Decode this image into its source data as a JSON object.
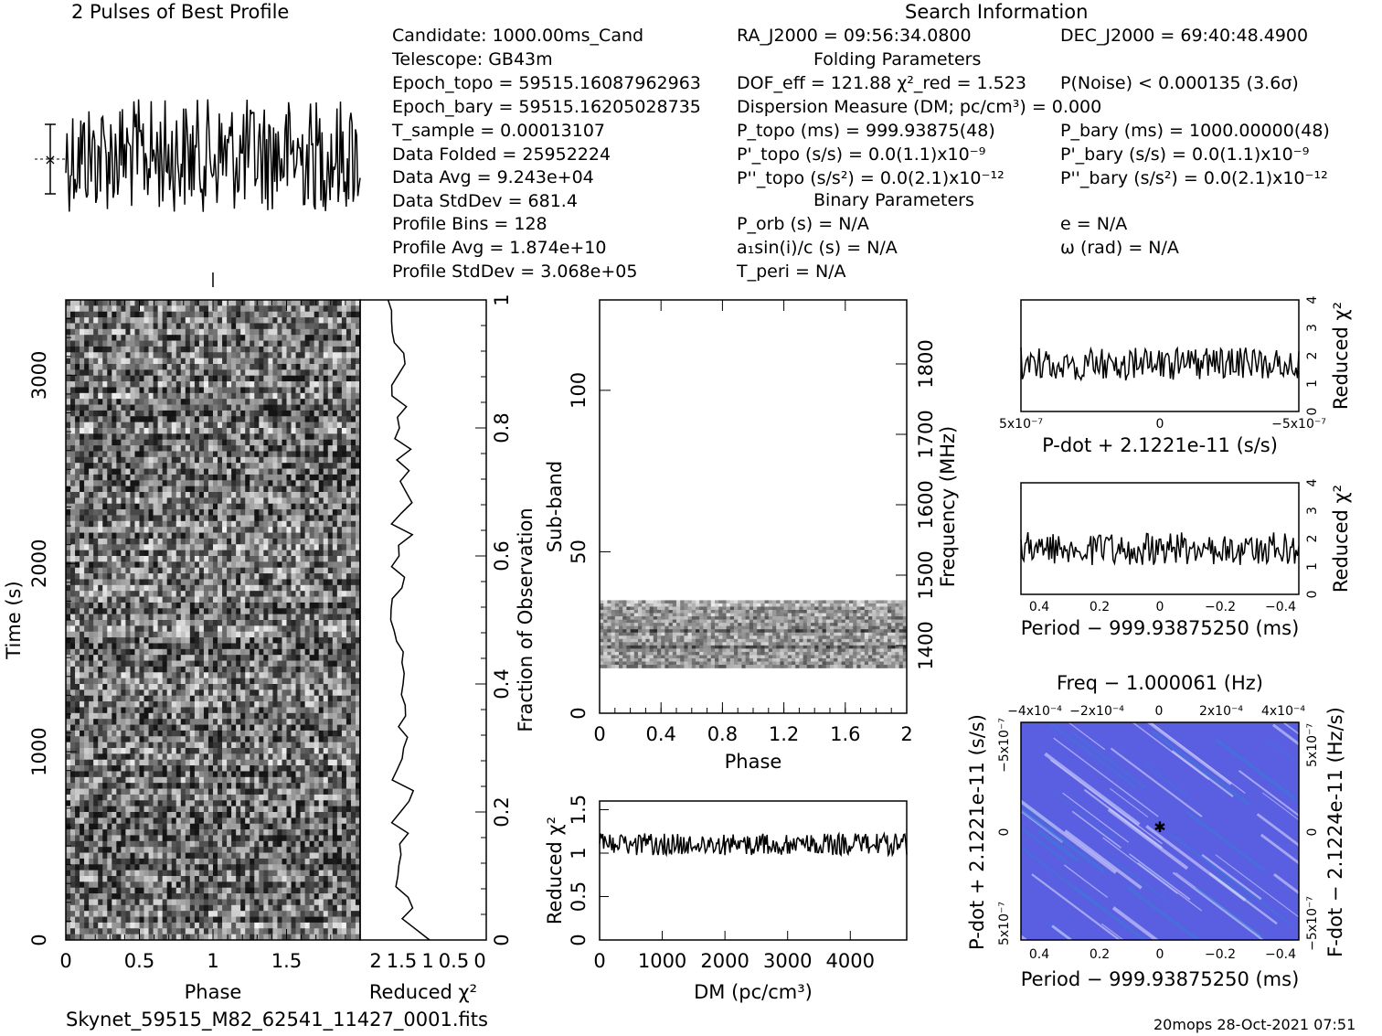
{
  "header": {
    "profile_title": "2 Pulses of Best Profile",
    "search_title": "Search Information",
    "folding_title": "Folding Parameters",
    "binary_title": "Binary Parameters"
  },
  "info_left": [
    "Candidate:  1000.00ms_Cand",
    "Telescope:  GB43m",
    "Epoch_topo = 59515.16087962963",
    "Epoch_bary = 59515.16205028735",
    "T_sample  =  0.00013107",
    "Data Folded  =  25952224",
    "Data Avg  =  9.243e+04",
    "Data StdDev  =  681.4",
    "Profile Bins  =  128",
    "Profile Avg  =  1.874e+10",
    "Profile StdDev  =  3.068e+05"
  ],
  "info_mid": [
    "RA_J2000 = 09:56:34.0800",
    "DOF_eff = 121.88  χ²_red = 1.523",
    "Dispersion Measure (DM; pc/cm³) = 0.000",
    "P_topo (ms) =  999.93875(48)",
    "P'_topo (s/s) = 0.0(1.1)x10⁻⁹",
    "P''_topo (s/s²) = 0.0(2.1)x10⁻¹²",
    "P_orb (s) = N/A",
    "a₁sin(i)/c (s) = N/A",
    "T_peri = N/A"
  ],
  "info_right": [
    "DEC_J2000 = 69:40:48.4900",
    "P(Noise) < 0.000135  (3.6σ)",
    "P_bary (ms) =  1000.00000(48)",
    "P'_bary (s/s) = 0.0(1.1)x10⁻⁹",
    "P''_bary (s/s²) = 0.0(2.1)x10⁻¹²",
    "e = N/A",
    "ω (rad) = N/A"
  ],
  "footer": {
    "filename": "Skynet_59515_M82_62541_11427_0001.fits",
    "timestamp": "20mops 28-Oct-2021 07:51"
  },
  "colors": {
    "ppdot_bg": "#5a5ee0",
    "ppdot_hi": "#d8d8ff",
    "ppdot_low": "#3a7ad8"
  },
  "chart_data": [
    {
      "type": "line",
      "name": "profile",
      "title": "2 Pulses of Best Profile",
      "xlim": [
        0,
        2
      ],
      "bins": 128,
      "description": "noisy profile, no clear pulse"
    },
    {
      "type": "heatmap",
      "name": "time-phase",
      "xlabel": "Phase",
      "ylabel": "Time (s)",
      "xlim": [
        0,
        2
      ],
      "ylim": [
        0,
        3400
      ],
      "x_ticks": [
        0,
        0.5,
        1,
        1.5
      ],
      "y_ticks": [
        0,
        1000,
        2000,
        3000
      ],
      "right_label": "Fraction of Observation",
      "right_ticks": [
        0,
        0.2,
        0.4,
        0.6,
        0.8,
        1
      ]
    },
    {
      "type": "line",
      "name": "time-chi2",
      "xlabel": "Reduced χ²",
      "x_ticks": [
        "2",
        "1.5",
        "1",
        "0.5",
        "0"
      ]
    },
    {
      "type": "heatmap",
      "name": "subband-phase",
      "xlabel": "Phase",
      "ylabel": "Sub-band",
      "xlim": [
        0,
        2
      ],
      "ylim": [
        0,
        128
      ],
      "x_ticks": [
        "0",
        "0.4",
        "0.8",
        "1.2",
        "1.6",
        "2"
      ],
      "y_ticks": [
        0,
        50,
        100
      ],
      "right_label": "Frequency (MHz)",
      "right_ticks": [
        1400,
        1500,
        1600,
        1700,
        1800
      ],
      "filled_subbands": [
        14,
        35
      ]
    },
    {
      "type": "line",
      "name": "dm-chi2",
      "xlabel": "DM (pc/cm³)",
      "ylabel": "Reduced χ²",
      "xlim": [
        0,
        4900
      ],
      "ylim": [
        0,
        1.6
      ],
      "x_ticks": [
        0,
        1000,
        2000,
        3000,
        4000
      ],
      "y_ticks": [
        "0",
        "0.5",
        "1",
        "1.5"
      ],
      "level": 1.1
    },
    {
      "type": "line",
      "name": "pdot-chi2",
      "xlabel": "P-dot + 2.1221e-11 (s/s)",
      "ylabel": "Reduced χ²",
      "x_ticks": [
        "5x10⁻⁷",
        "0",
        "−5x10⁻⁷"
      ],
      "y_ticks": [
        "0",
        "1",
        "2",
        "3",
        "4"
      ],
      "level": 1.7
    },
    {
      "type": "line",
      "name": "period-chi2",
      "xlabel": "Period − 999.93875250 (ms)",
      "ylabel": "Reduced χ²",
      "x_ticks": [
        "0.4",
        "0.2",
        "0",
        "−0.2",
        "−0.4"
      ],
      "y_ticks": [
        "0",
        "1",
        "2",
        "3",
        "4"
      ],
      "level": 1.7
    },
    {
      "type": "heatmap",
      "name": "p-pdot",
      "title": "Freq − 1.000061 (Hz)",
      "xlabel": "Period − 999.93875250 (ms)",
      "ylabel": "P-dot + 2.1221e-11 (s/s)",
      "right_label": "F-dot − 2.1224e-11 (Hz/s)",
      "x_ticks": [
        "0.4",
        "0.2",
        "0",
        "−0.2",
        "−0.4"
      ],
      "top_ticks": [
        "−4x10⁻⁴",
        "−2x10⁻⁴",
        "0",
        "2x10⁻⁴",
        "4x10⁻⁴"
      ],
      "left_ticks": [
        "−5x10⁻⁷",
        "0",
        "5x10⁻⁷"
      ],
      "right_ticks": [
        "5x10⁻⁷",
        "0",
        "−5x10⁻⁷"
      ]
    }
  ]
}
